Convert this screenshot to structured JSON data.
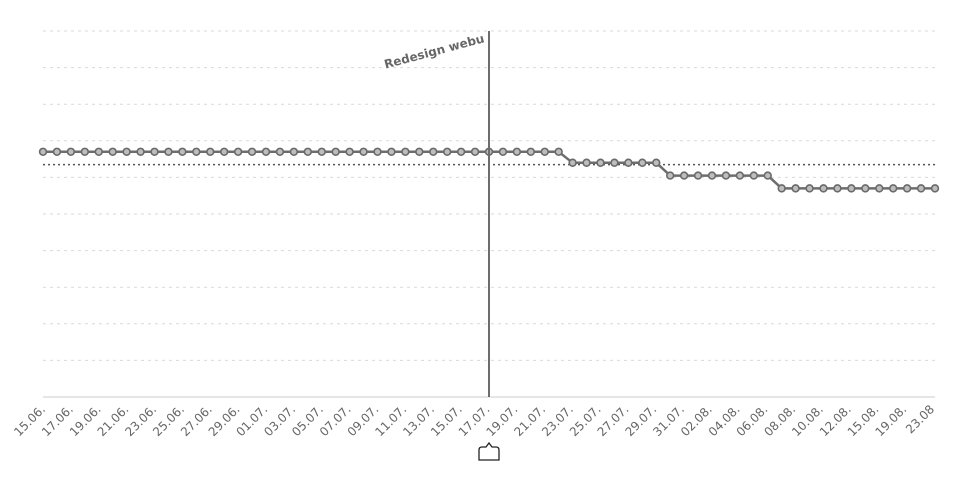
{
  "colors": {
    "series": "#6d6d6d",
    "reference": "#555555",
    "grid": "#d9d9d9",
    "axis": "#cccccc",
    "marker": "#6a6a6a",
    "text": "#666666"
  },
  "chart_data": {
    "type": "line",
    "title": "",
    "xlabel": "",
    "ylabel": "",
    "ylim": [
      0,
      10
    ],
    "grid": true,
    "legend": "none",
    "x": [
      "15.06.",
      "16.06.",
      "17.06.",
      "18.06.",
      "19.06.",
      "20.06.",
      "21.06.",
      "22.06.",
      "23.06.",
      "24.06.",
      "25.06.",
      "26.06.",
      "27.06.",
      "28.06.",
      "29.06.",
      "30.06.",
      "01.07.",
      "02.07.",
      "03.07.",
      "04.07.",
      "05.07.",
      "06.07.",
      "07.07.",
      "08.07.",
      "09.07.",
      "10.07.",
      "11.07.",
      "12.07.",
      "13.07.",
      "14.07.",
      "15.07.",
      "16.07.",
      "17.07.",
      "18.07.",
      "19.07.",
      "20.07.",
      "21.07.",
      "22.07.",
      "23.07.",
      "24.07.",
      "25.07.",
      "26.07.",
      "27.07.",
      "28.07.",
      "29.07.",
      "30.07.",
      "31.07.",
      "01.08.",
      "02.08.",
      "03.08.",
      "04.08.",
      "05.08.",
      "06.08.",
      "07.08.",
      "08.08.",
      "09.08.",
      "10.08.",
      "11.08.",
      "12.08.",
      "13.08.",
      "15.08.",
      "16.08.",
      "19.08.",
      "20.08.",
      "23.08"
    ],
    "tick_labels": [
      "15.06.",
      "17.06.",
      "19.06.",
      "21.06.",
      "23.06.",
      "25.06.",
      "27.06.",
      "29.06.",
      "01.07.",
      "03.07.",
      "05.07.",
      "07.07.",
      "09.07.",
      "11.07.",
      "13.07.",
      "15.07.",
      "17.07.",
      "19.07.",
      "21.07.",
      "23.07.",
      "25.07.",
      "27.07.",
      "29.07.",
      "31.07.",
      "02.08.",
      "04.08.",
      "06.08.",
      "08.08.",
      "10.08.",
      "12.08.",
      "15.08.",
      "19.08.",
      "23.08"
    ],
    "series": [
      {
        "values": [
          6.7,
          6.7,
          6.7,
          6.7,
          6.7,
          6.7,
          6.7,
          6.7,
          6.7,
          6.7,
          6.7,
          6.7,
          6.7,
          6.7,
          6.7,
          6.7,
          6.7,
          6.7,
          6.7,
          6.7,
          6.7,
          6.7,
          6.7,
          6.7,
          6.7,
          6.7,
          6.7,
          6.7,
          6.7,
          6.7,
          6.7,
          6.7,
          6.7,
          6.7,
          6.7,
          6.7,
          6.7,
          6.7,
          6.4,
          6.4,
          6.4,
          6.4,
          6.4,
          6.4,
          6.4,
          6.05,
          6.05,
          6.05,
          6.05,
          6.05,
          6.05,
          6.05,
          6.05,
          5.7,
          5.7,
          5.7,
          5.7,
          5.7,
          5.7,
          5.7,
          5.7,
          5.7,
          5.7,
          5.7,
          5.7
        ]
      }
    ],
    "reference_line": {
      "value": 6.35
    },
    "annotation": {
      "x": "17.07.",
      "label": "Redesign webu"
    }
  }
}
